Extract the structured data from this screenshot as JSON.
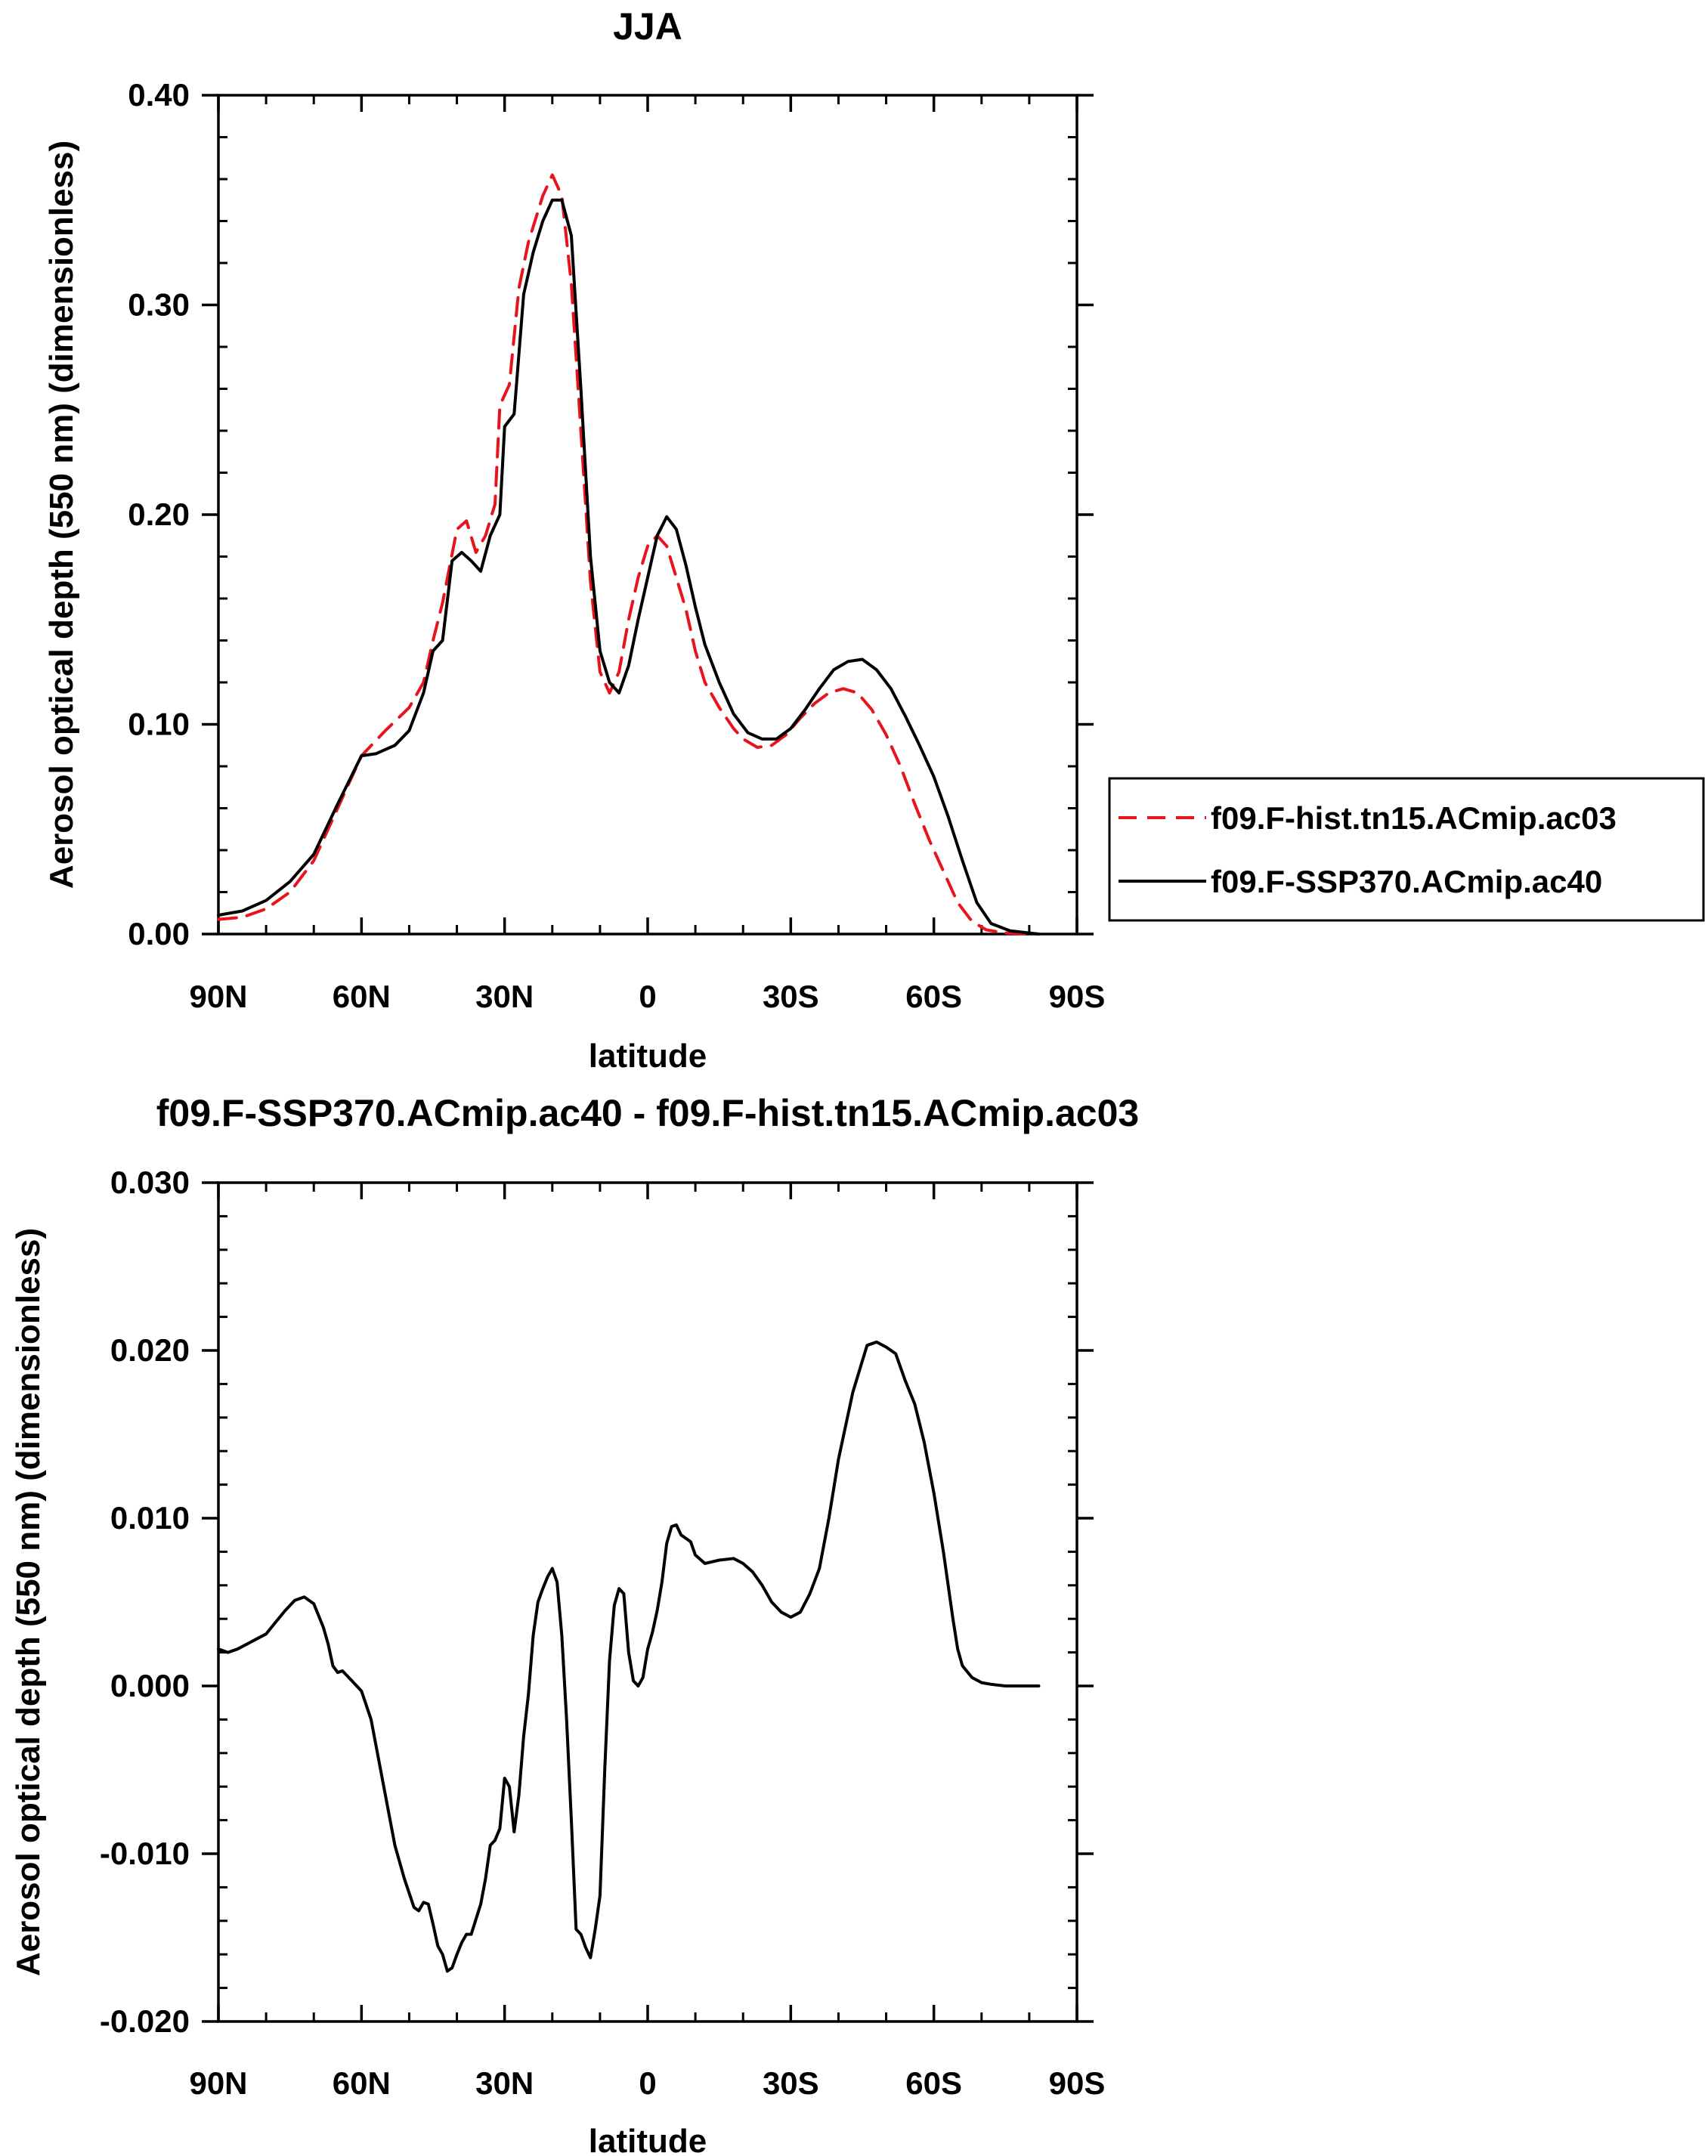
{
  "chart_data": [
    {
      "type": "line",
      "title": "JJA",
      "xlabel": "latitude",
      "ylabel": "Aerosol optical depth (550 nm) (dimensionless)",
      "xlim": [
        90,
        -90
      ],
      "ylim": [
        0,
        0.4
      ],
      "x_ticks": [
        90,
        60,
        30,
        0,
        -30,
        -60,
        -90
      ],
      "x_tick_labels": [
        "90N",
        "60N",
        "30N",
        "0",
        "30S",
        "60S",
        "90S"
      ],
      "y_ticks": [
        0,
        0.1,
        0.2,
        0.3,
        0.4
      ],
      "y_tick_labels": [
        "0.00",
        "0.10",
        "0.20",
        "0.30",
        "0.40"
      ],
      "grid": false,
      "legend_position": "right",
      "series": [
        {
          "name": "f09.F-hist.tn15.ACmip.ac03",
          "color": "#e8141b",
          "dash": "dashed",
          "x": [
            90,
            85,
            80,
            75,
            70,
            65,
            60,
            55,
            50,
            47,
            45,
            43,
            40,
            38,
            36,
            34,
            32,
            31,
            29,
            27,
            25,
            22,
            20,
            18,
            16,
            14,
            12,
            10,
            8,
            6,
            4,
            2,
            0,
            -2,
            -4,
            -6,
            -8,
            -10,
            -12,
            -15,
            -18,
            -20,
            -23,
            -26,
            -29,
            -32,
            -35,
            -38,
            -41,
            -44,
            -47,
            -50,
            -53,
            -56,
            -59,
            -62,
            -65,
            -68,
            -71,
            -75,
            -80,
            -82
          ],
          "values": [
            0.007,
            0.008,
            0.012,
            0.02,
            0.035,
            0.06,
            0.085,
            0.097,
            0.108,
            0.12,
            0.14,
            0.158,
            0.193,
            0.197,
            0.182,
            0.19,
            0.205,
            0.252,
            0.262,
            0.308,
            0.33,
            0.352,
            0.362,
            0.352,
            0.31,
            0.24,
            0.168,
            0.125,
            0.115,
            0.125,
            0.15,
            0.17,
            0.185,
            0.19,
            0.185,
            0.17,
            0.155,
            0.135,
            0.12,
            0.108,
            0.098,
            0.093,
            0.089,
            0.09,
            0.095,
            0.103,
            0.11,
            0.115,
            0.117,
            0.115,
            0.107,
            0.095,
            0.08,
            0.062,
            0.045,
            0.03,
            0.015,
            0.006,
            0.002,
            0.0005,
            0.0,
            0.0
          ]
        },
        {
          "name": "f09.F-SSP370.ACmip.ac40",
          "color": "#000000",
          "dash": "solid",
          "x": [
            90,
            85,
            80,
            75,
            70,
            65,
            60,
            57,
            53,
            50,
            47,
            45,
            43,
            41,
            39,
            37,
            35,
            33,
            31,
            30,
            28,
            26,
            24,
            22,
            20,
            18,
            16,
            14,
            12,
            10,
            8,
            6,
            4,
            2,
            0,
            -2,
            -4,
            -6,
            -8,
            -10,
            -12,
            -15,
            -18,
            -21,
            -24,
            -27,
            -30,
            -33,
            -36,
            -39,
            -42,
            -45,
            -48,
            -51,
            -54,
            -57,
            -60,
            -63,
            -66,
            -69,
            -72,
            -76,
            -80,
            -82
          ],
          "values": [
            0.009,
            0.011,
            0.016,
            0.025,
            0.038,
            0.062,
            0.085,
            0.086,
            0.09,
            0.097,
            0.115,
            0.135,
            0.14,
            0.178,
            0.182,
            0.178,
            0.173,
            0.19,
            0.2,
            0.242,
            0.248,
            0.305,
            0.325,
            0.34,
            0.35,
            0.35,
            0.333,
            0.26,
            0.18,
            0.135,
            0.12,
            0.115,
            0.128,
            0.15,
            0.17,
            0.19,
            0.199,
            0.193,
            0.176,
            0.156,
            0.138,
            0.12,
            0.105,
            0.096,
            0.093,
            0.093,
            0.098,
            0.107,
            0.117,
            0.126,
            0.13,
            0.131,
            0.126,
            0.117,
            0.104,
            0.09,
            0.075,
            0.056,
            0.035,
            0.015,
            0.005,
            0.0015,
            0.0005,
            0.0
          ]
        }
      ]
    },
    {
      "type": "line",
      "title": "f09.F-SSP370.ACmip.ac40 - f09.F-hist.tn15.ACmip.ac03",
      "xlabel": "latitude",
      "ylabel": "Aerosol optical depth (550 nm) (dimensionless)",
      "xlim": [
        90,
        -90
      ],
      "ylim": [
        -0.02,
        0.03
      ],
      "x_ticks": [
        90,
        60,
        30,
        0,
        -30,
        -60,
        -90
      ],
      "x_tick_labels": [
        "90N",
        "60N",
        "30N",
        "0",
        "30S",
        "60S",
        "90S"
      ],
      "y_ticks": [
        -0.02,
        -0.01,
        0,
        0.01,
        0.02,
        0.03
      ],
      "y_tick_labels": [
        "-0.020",
        "-0.010",
        "0.000",
        "0.010",
        "0.020",
        "0.030"
      ],
      "grid": false,
      "series": [
        {
          "color": "#000000",
          "dash": "solid",
          "x": [
            90,
            88,
            86,
            84,
            82,
            80,
            78,
            76,
            74,
            72,
            70,
            68,
            67,
            66,
            65,
            64,
            62,
            60,
            58,
            56,
            55,
            53,
            51,
            49,
            48,
            47,
            46,
            45,
            44,
            43,
            42,
            41,
            40,
            39,
            38,
            37,
            35,
            34,
            33,
            32,
            31,
            30,
            29,
            28,
            27,
            26,
            25,
            24,
            23,
            22,
            21,
            20,
            19,
            18,
            17,
            16,
            15,
            14,
            13,
            12,
            11,
            10,
            9,
            8,
            7,
            6,
            5,
            4,
            3,
            2,
            1,
            0,
            -1,
            -2,
            -3,
            -4,
            -5,
            -6,
            -7,
            -8,
            -9,
            -10,
            -12,
            -15,
            -18,
            -20,
            -22,
            -24,
            -26,
            -28,
            -30,
            -32,
            -34,
            -36,
            -38,
            -40,
            -43,
            -46,
            -48,
            -50,
            -52,
            -54,
            -56,
            -58,
            -60,
            -62,
            -64,
            -65,
            -66,
            -68,
            -70,
            -72,
            -75,
            -80,
            -82
          ],
          "values": [
            0.0022,
            0.002,
            0.0022,
            0.0025,
            0.0028,
            0.0031,
            0.0038,
            0.0045,
            0.0051,
            0.0053,
            0.0049,
            0.0035,
            0.0025,
            0.0012,
            0.0008,
            0.0009,
            0.0003,
            -0.0003,
            -0.002,
            -0.005,
            -0.0065,
            -0.0095,
            -0.0115,
            -0.0132,
            -0.0134,
            -0.0129,
            -0.013,
            -0.0142,
            -0.0155,
            -0.016,
            -0.017,
            -0.0168,
            -0.016,
            -0.0153,
            -0.0148,
            -0.0148,
            -0.013,
            -0.0115,
            -0.0095,
            -0.0092,
            -0.0085,
            -0.0055,
            -0.006,
            -0.0087,
            -0.0065,
            -0.003,
            -0.0005,
            0.003,
            0.005,
            0.0058,
            0.0065,
            0.007,
            0.0062,
            0.003,
            -0.002,
            -0.008,
            -0.0145,
            -0.0148,
            -0.0156,
            -0.0162,
            -0.0145,
            -0.0125,
            -0.005,
            0.0015,
            0.0048,
            0.0058,
            0.0055,
            0.002,
            0.0003,
            0.0,
            0.0005,
            0.0022,
            0.0032,
            0.0045,
            0.0062,
            0.0085,
            0.0095,
            0.0096,
            0.009,
            0.0088,
            0.0086,
            0.0078,
            0.0073,
            0.0075,
            0.0076,
            0.0073,
            0.0068,
            0.006,
            0.005,
            0.0044,
            0.0041,
            0.0044,
            0.0055,
            0.007,
            0.01,
            0.0135,
            0.0175,
            0.0203,
            0.0205,
            0.0202,
            0.0198,
            0.0182,
            0.0168,
            0.0145,
            0.0115,
            0.008,
            0.004,
            0.0022,
            0.0012,
            0.0005,
            0.0002,
            0.0001,
            0.0,
            0.0,
            0.0
          ]
        }
      ]
    }
  ]
}
